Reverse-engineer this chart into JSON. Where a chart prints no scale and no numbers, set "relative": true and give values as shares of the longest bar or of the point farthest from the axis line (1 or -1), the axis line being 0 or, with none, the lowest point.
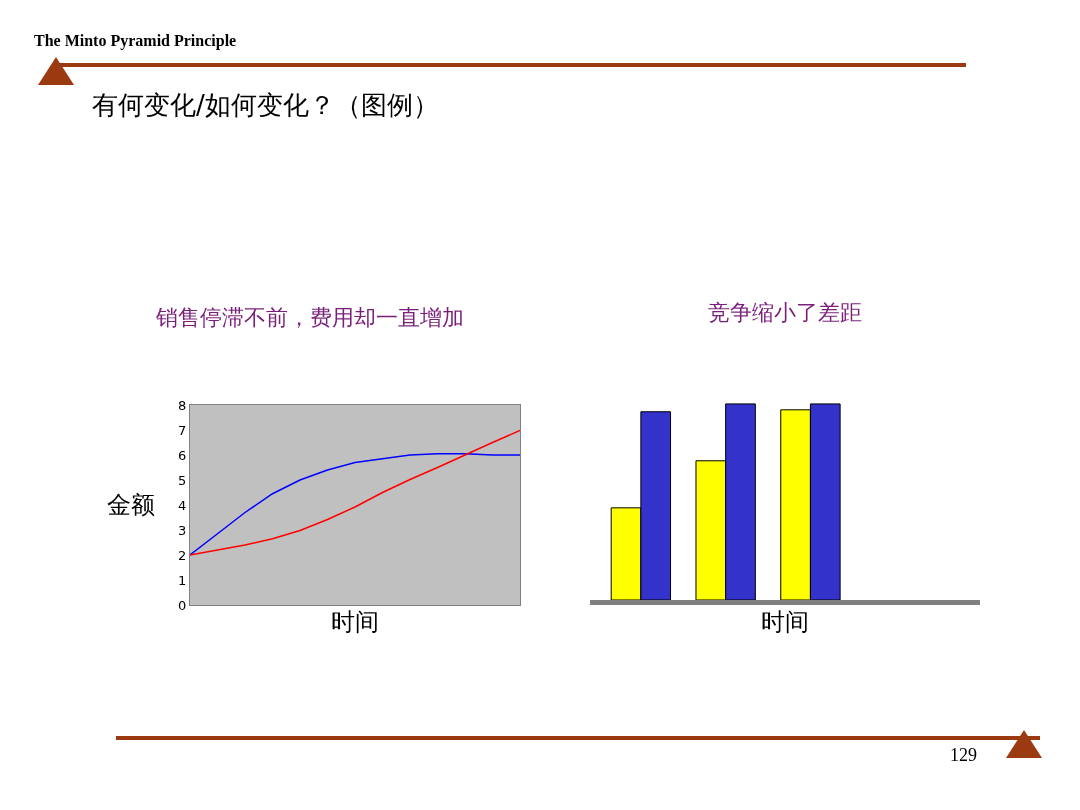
{
  "chart_data": [
    {
      "type": "line",
      "title": "销售停滞不前，费用却一直增加",
      "xlabel": "时间",
      "ylabel": "金额",
      "annotations": [
        "The Minto Pyramid Principle",
        "有何变化/如何变化？（图例）"
      ],
      "series": [
        {
          "color": "#0000ff",
          "values": [
            2,
            2.85,
            3.7,
            4.45,
            5.0,
            5.4,
            5.7,
            5.85,
            6.0,
            6.05,
            6.05,
            6.0,
            6.0
          ]
        },
        {
          "color": "#ff0000",
          "values": [
            2,
            2.2,
            2.4,
            2.65,
            2.98,
            3.42,
            3.92,
            4.5,
            5.02,
            5.5,
            6.0,
            6.5,
            6.98
          ]
        }
      ],
      "categories": [
        null,
        null,
        null,
        null,
        null,
        null,
        null,
        null,
        null,
        null,
        null,
        null,
        null
      ],
      "ylim": [
        0,
        8
      ],
      "yticks": [
        0,
        1,
        2,
        3,
        4,
        5,
        6,
        7,
        8
      ],
      "tick_labels": "y",
      "grid": false,
      "legend": false,
      "marker": "none",
      "line_style": "solid"
    },
    {
      "type": "bar",
      "title": "竞争缩小了差距",
      "xlabel": "时间",
      "annotations": [
        "129"
      ],
      "relative": true,
      "categories": [
        null,
        null,
        null
      ],
      "series": [
        {
          "color": "#ffff00",
          "values": [
            0.47,
            0.71,
            0.97
          ]
        },
        {
          "color": "#3333cc",
          "values": [
            0.96,
            1,
            1
          ]
        }
      ],
      "grid": false,
      "legend": false
    }
  ]
}
